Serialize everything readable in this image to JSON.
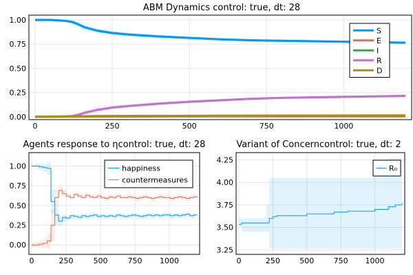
{
  "chart_data": [
    {
      "type": "line",
      "title": "ABM Dynamics control: true, dt: 28",
      "xlabel": "",
      "ylabel": "",
      "xlim": [
        -20,
        1220
      ],
      "ylim": [
        -0.03,
        1.05
      ],
      "xticks": [
        0,
        250,
        500,
        750,
        1000
      ],
      "yticks": [
        0.0,
        0.25,
        0.5,
        0.75,
        1.0
      ],
      "xtick_labels": [
        "0",
        "250",
        "500",
        "750",
        "1000"
      ],
      "ytick_labels": [
        "0.00",
        "0.25",
        "0.50",
        "0.75",
        "1.00"
      ],
      "grid": true,
      "legend_position": "right",
      "series": [
        {
          "name": "S",
          "color": "#009af9",
          "x": [
            0,
            50,
            100,
            120,
            140,
            160,
            200,
            250,
            300,
            400,
            500,
            600,
            700,
            800,
            900,
            1000,
            1100,
            1200
          ],
          "y": [
            1.0,
            1.0,
            0.99,
            0.98,
            0.955,
            0.925,
            0.89,
            0.865,
            0.85,
            0.83,
            0.815,
            0.8,
            0.79,
            0.785,
            0.78,
            0.775,
            0.77,
            0.765
          ],
          "band": [
            0.0,
            0.0,
            0.01,
            0.02,
            0.03,
            0.03,
            0.025,
            0.02,
            0.02,
            0.015,
            0.01,
            0.01,
            0.01,
            0.01,
            0.01,
            0.01,
            0.01,
            0.01
          ]
        },
        {
          "name": "E",
          "color": "#e26f46",
          "x": [
            0,
            600,
            1200
          ],
          "y": [
            0.0,
            0.005,
            0.005
          ],
          "band": [
            0.0,
            0.003,
            0.003
          ]
        },
        {
          "name": "I",
          "color": "#3da44d",
          "x": [
            0,
            100,
            200,
            400,
            600,
            800,
            1000,
            1200
          ],
          "y": [
            0.0,
            0.003,
            0.006,
            0.008,
            0.009,
            0.01,
            0.01,
            0.01
          ],
          "band": [
            0.0,
            0.002,
            0.003,
            0.003,
            0.003,
            0.003,
            0.003,
            0.003
          ]
        },
        {
          "name": "R",
          "color": "#c271d2",
          "x": [
            0,
            100,
            120,
            140,
            160,
            200,
            250,
            300,
            400,
            500,
            600,
            700,
            800,
            900,
            1000,
            1100,
            1200
          ],
          "y": [
            0.0,
            0.002,
            0.008,
            0.02,
            0.04,
            0.07,
            0.095,
            0.11,
            0.135,
            0.155,
            0.17,
            0.185,
            0.195,
            0.2,
            0.205,
            0.21,
            0.215
          ],
          "band": [
            0.0,
            0.002,
            0.01,
            0.02,
            0.025,
            0.025,
            0.02,
            0.02,
            0.015,
            0.012,
            0.01,
            0.01,
            0.01,
            0.01,
            0.01,
            0.01,
            0.01
          ]
        },
        {
          "name": "D",
          "color": "#ac8d18",
          "x": [
            0,
            150,
            300,
            600,
            900,
            1200
          ],
          "y": [
            0.0,
            0.004,
            0.008,
            0.01,
            0.012,
            0.013
          ],
          "band": [
            0.0,
            0.002,
            0.003,
            0.003,
            0.003,
            0.003
          ]
        }
      ]
    },
    {
      "type": "line",
      "title": "Agents response to ηcontrol: true, dt: 28",
      "xlabel": "",
      "ylabel": "",
      "xlim": [
        -20,
        1220
      ],
      "ylim": [
        -0.12,
        1.17
      ],
      "xticks": [
        0,
        250,
        500,
        750,
        1000
      ],
      "yticks": [
        0.0,
        0.25,
        0.5,
        0.75,
        1.0
      ],
      "xtick_labels": [
        "0",
        "250",
        "500",
        "750",
        "1000"
      ],
      "ytick_labels": [
        "0.00",
        "0.25",
        "0.50",
        "0.75",
        "1.00"
      ],
      "grid": true,
      "legend_position": "top-right",
      "step": true,
      "series": [
        {
          "name": "happiness",
          "color": "#009af9",
          "x": [
            0,
            28,
            56,
            84,
            112,
            140,
            168,
            196,
            224,
            252,
            280,
            308,
            336,
            364,
            392,
            420,
            448,
            476,
            504,
            532,
            560,
            588,
            616,
            644,
            672,
            700,
            728,
            756,
            784,
            812,
            840,
            868,
            896,
            924,
            952,
            980,
            1008,
            1036,
            1064,
            1092,
            1120,
            1148,
            1176,
            1200
          ],
          "y": [
            1.0,
            1.0,
            0.99,
            0.98,
            0.97,
            0.55,
            0.38,
            0.3,
            0.35,
            0.34,
            0.37,
            0.36,
            0.35,
            0.37,
            0.36,
            0.37,
            0.38,
            0.36,
            0.37,
            0.36,
            0.37,
            0.36,
            0.38,
            0.37,
            0.36,
            0.37,
            0.38,
            0.37,
            0.36,
            0.37,
            0.38,
            0.37,
            0.38,
            0.37,
            0.38,
            0.38,
            0.37,
            0.38,
            0.37,
            0.38,
            0.39,
            0.37,
            0.38,
            0.38
          ],
          "band": [
            0.02,
            0.03,
            0.04,
            0.05,
            0.08,
            0.15,
            0.12,
            0.06,
            0.04,
            0.03,
            0.03,
            0.03,
            0.03,
            0.03,
            0.03,
            0.03,
            0.03,
            0.03,
            0.03,
            0.03,
            0.03,
            0.03,
            0.03,
            0.03,
            0.03,
            0.03,
            0.03,
            0.03,
            0.03,
            0.03,
            0.03,
            0.03,
            0.03,
            0.03,
            0.03,
            0.03,
            0.03,
            0.03,
            0.03,
            0.03,
            0.03,
            0.03,
            0.03,
            0.03
          ]
        },
        {
          "name": "countermeasures",
          "color": "#e26f46",
          "x": [
            0,
            28,
            56,
            84,
            112,
            140,
            168,
            196,
            224,
            252,
            280,
            308,
            336,
            364,
            392,
            420,
            448,
            476,
            504,
            532,
            560,
            588,
            616,
            644,
            672,
            700,
            728,
            756,
            784,
            812,
            840,
            868,
            896,
            924,
            952,
            980,
            1008,
            1036,
            1064,
            1092,
            1120,
            1148,
            1176,
            1200
          ],
          "y": [
            0.0,
            0.0,
            0.01,
            0.02,
            0.05,
            0.25,
            0.6,
            0.69,
            0.65,
            0.62,
            0.6,
            0.64,
            0.62,
            0.6,
            0.63,
            0.61,
            0.6,
            0.62,
            0.6,
            0.59,
            0.61,
            0.6,
            0.62,
            0.6,
            0.6,
            0.61,
            0.6,
            0.59,
            0.6,
            0.61,
            0.6,
            0.59,
            0.6,
            0.61,
            0.6,
            0.6,
            0.59,
            0.6,
            0.61,
            0.6,
            0.59,
            0.6,
            0.61,
            0.6
          ],
          "band": [
            0.03,
            0.04,
            0.05,
            0.06,
            0.1,
            0.2,
            0.1,
            0.05,
            0.04,
            0.03,
            0.03,
            0.03,
            0.03,
            0.03,
            0.03,
            0.03,
            0.03,
            0.03,
            0.03,
            0.03,
            0.03,
            0.03,
            0.03,
            0.03,
            0.03,
            0.03,
            0.03,
            0.03,
            0.03,
            0.03,
            0.03,
            0.03,
            0.03,
            0.03,
            0.03,
            0.03,
            0.03,
            0.03,
            0.03,
            0.03,
            0.03,
            0.03,
            0.03,
            0.03
          ]
        }
      ]
    },
    {
      "type": "line",
      "title": "Variant of Concerncontrol: true, dt: 2",
      "xlabel": "",
      "ylabel": "",
      "xlim": [
        -20,
        1220
      ],
      "ylim": [
        3.2,
        4.33
      ],
      "xticks": [
        0,
        250,
        500,
        750,
        1000
      ],
      "yticks": [
        3.25,
        3.5,
        3.75,
        4.0,
        4.25
      ],
      "xtick_labels": [
        "0",
        "250",
        "500",
        "750",
        "1000"
      ],
      "ytick_labels": [
        "3.25",
        "3.50",
        "3.75",
        "4.00",
        "4.25"
      ],
      "grid": true,
      "legend_position": "top-right",
      "step": true,
      "series": [
        {
          "name": "R₀",
          "color": "#009af9",
          "x": [
            0,
            20,
            100,
            200,
            224,
            252,
            280,
            400,
            500,
            600,
            700,
            800,
            900,
            1000,
            1100,
            1150,
            1200
          ],
          "y": [
            3.53,
            3.55,
            3.55,
            3.55,
            3.6,
            3.62,
            3.63,
            3.63,
            3.65,
            3.65,
            3.67,
            3.68,
            3.68,
            3.7,
            3.73,
            3.75,
            3.77
          ],
          "lo": [
            3.53,
            3.45,
            3.45,
            3.45,
            3.26,
            3.26,
            3.26,
            3.26,
            3.26,
            3.26,
            3.26,
            3.26,
            3.26,
            3.26,
            3.26,
            3.26,
            3.26
          ],
          "hi": [
            3.6,
            3.6,
            3.6,
            3.75,
            4.05,
            4.05,
            4.05,
            4.05,
            4.05,
            4.05,
            4.05,
            4.05,
            4.05,
            4.1,
            4.27,
            4.27,
            4.27
          ]
        }
      ]
    }
  ]
}
